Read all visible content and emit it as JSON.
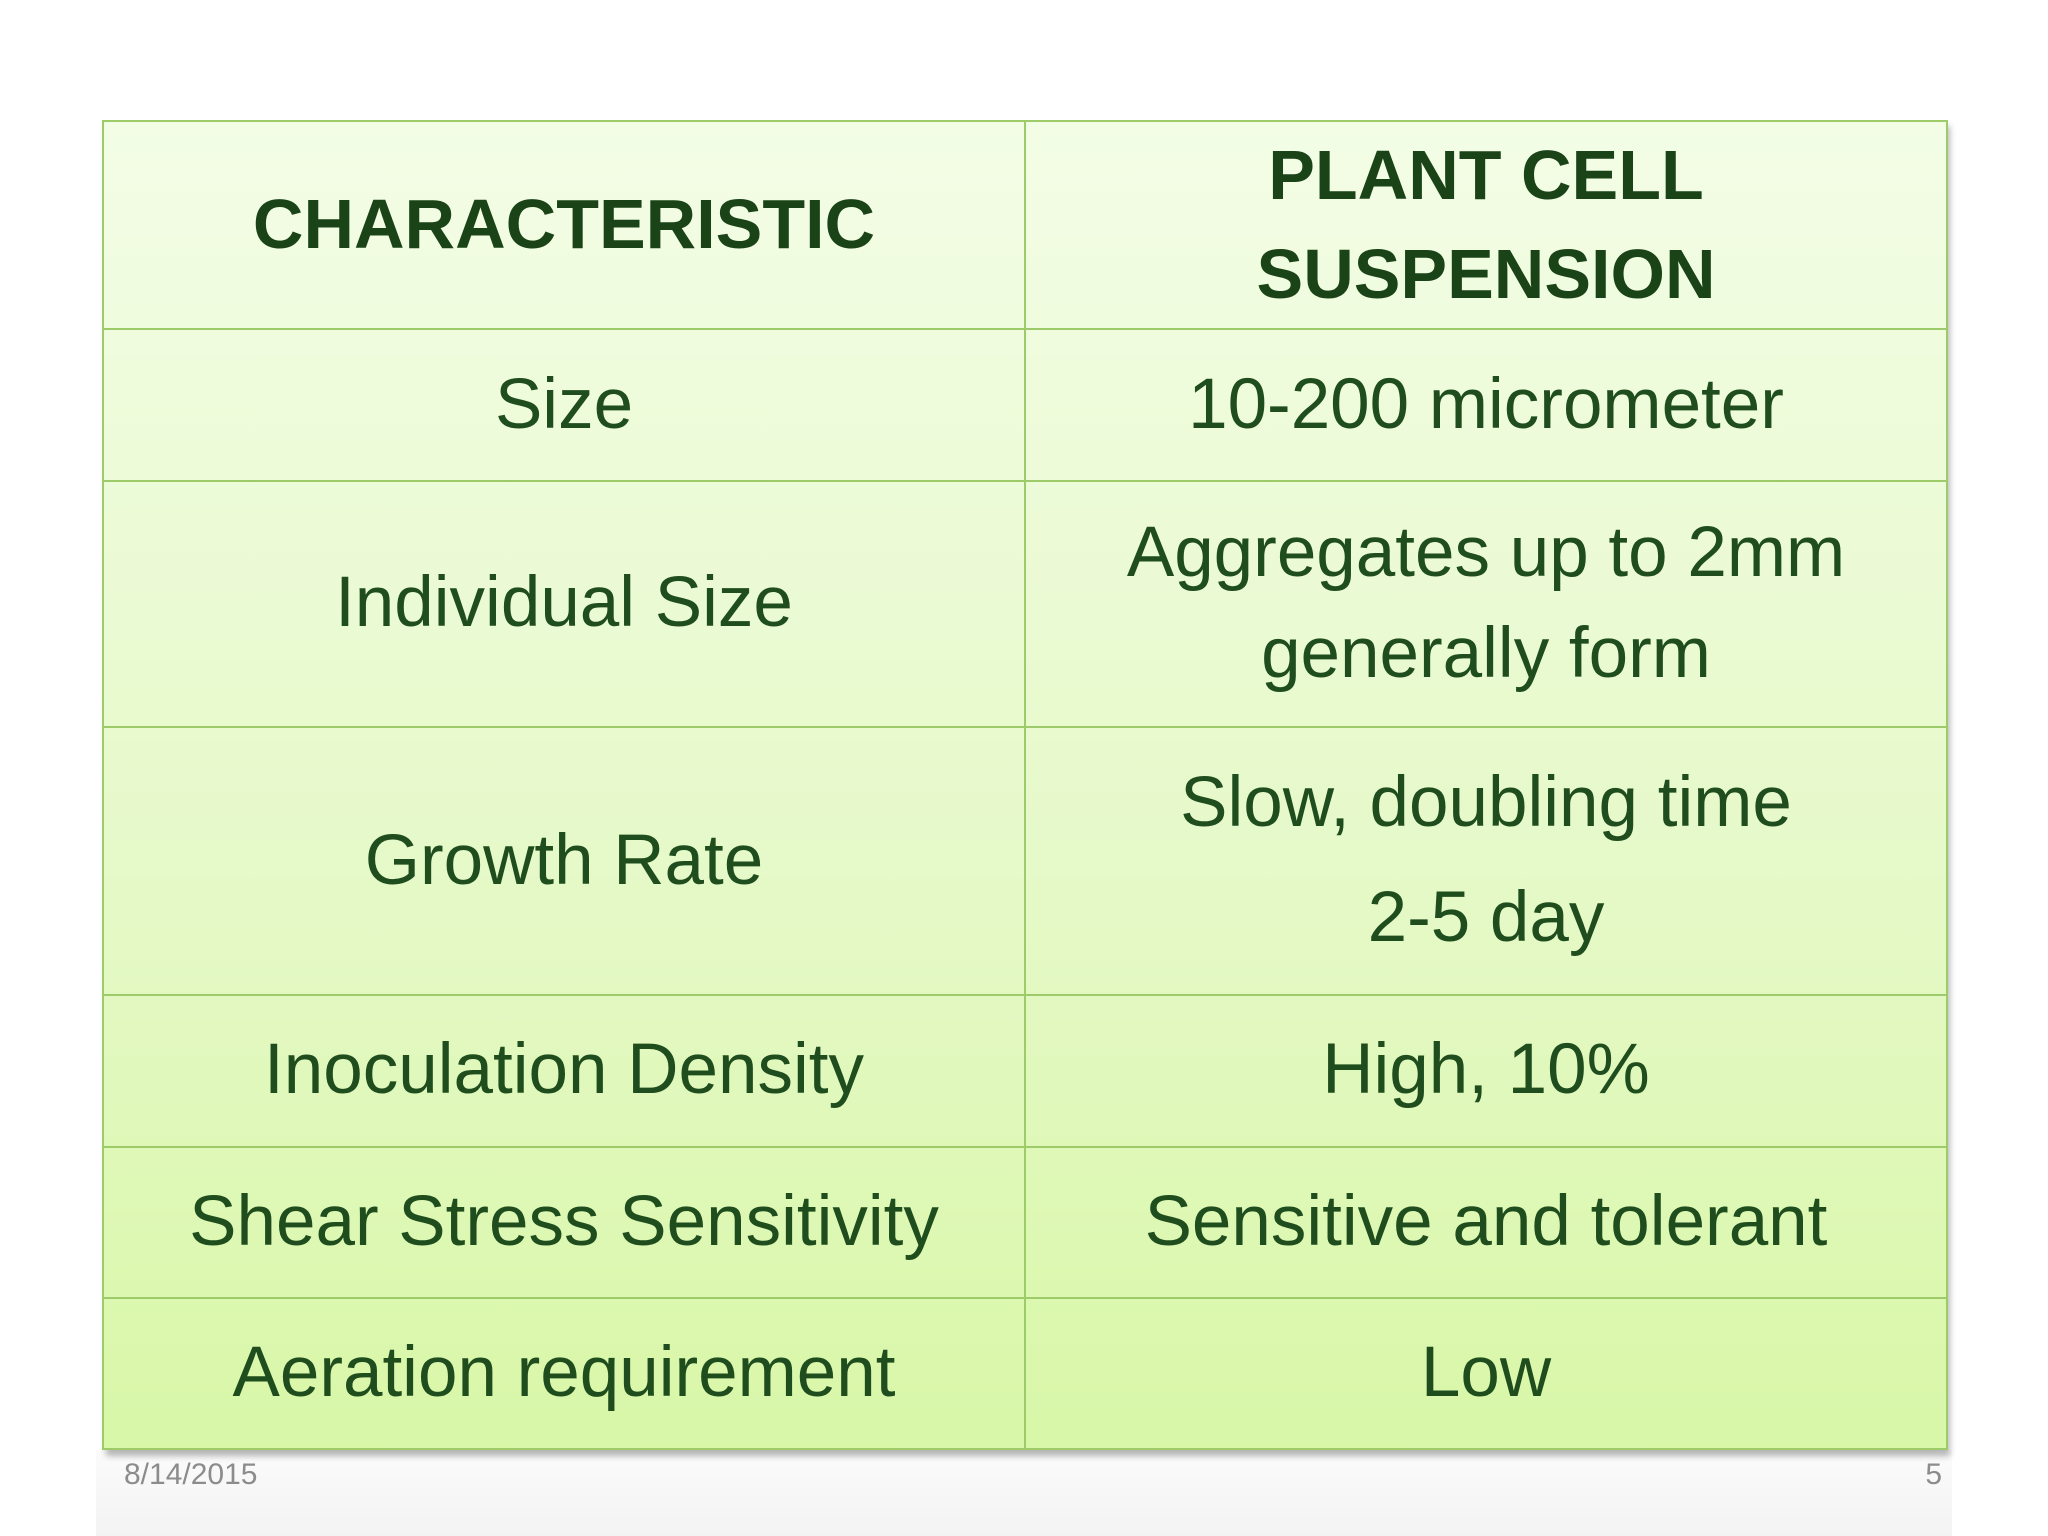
{
  "table": {
    "headers": [
      "CHARACTERISTIC",
      "PLANT CELL SUSPENSION"
    ],
    "rows": [
      {
        "characteristic": "Size",
        "value_lines": [
          "10-200 micrometer"
        ]
      },
      {
        "characteristic": "Individual Size",
        "value_lines": [
          "Aggregates up to 2mm",
          "generally form"
        ]
      },
      {
        "characteristic": "Growth Rate",
        "value_lines": [
          "Slow, doubling time",
          "2-5 day"
        ]
      },
      {
        "characteristic": "Inoculation Density",
        "value_lines": [
          "High, 10%"
        ]
      },
      {
        "characteristic": "Shear Stress Sensitivity",
        "value_lines": [
          "Sensitive and tolerant"
        ]
      },
      {
        "characteristic": "Aeration requirement",
        "value_lines": [
          "Low"
        ]
      }
    ]
  },
  "footer": {
    "date": "8/14/2015",
    "page_number": "5"
  },
  "colors": {
    "text": "#1f4d1d",
    "border": "#9ecb6a",
    "fill_top": "#f3fde6",
    "fill_bottom": "#d8f7a7"
  }
}
